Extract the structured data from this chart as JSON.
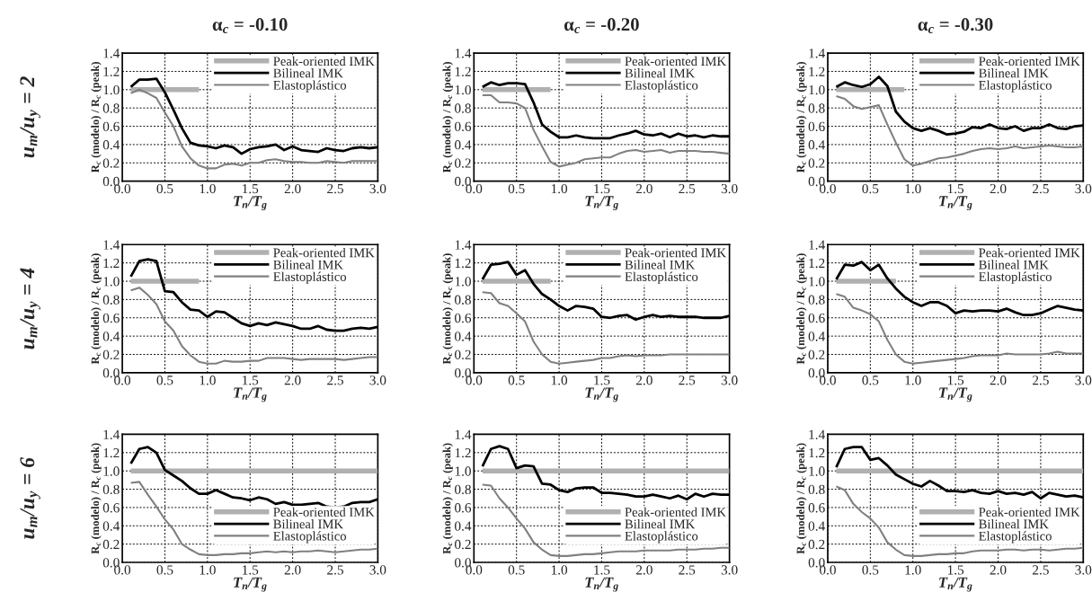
{
  "chart_data": [
    {
      "type": "line",
      "title": "α$_{c}$ = -0.10",
      "annotations": [
        "u$_{m}$/u$_{y}$ = 2"
      ],
      "xlabel": "T$_{n}$/T$_{g}$",
      "ylabel": "R$_{c}$ (modelo) / R$_{c}$ (peak)",
      "x": [
        0.1,
        0.2,
        0.3,
        0.4,
        0.5,
        0.6,
        0.7,
        0.8,
        0.9,
        1.0,
        1.1,
        1.2,
        1.3,
        1.4,
        1.5,
        1.6,
        1.7,
        1.8,
        1.9,
        2.0,
        2.1,
        2.2,
        2.3,
        2.4,
        2.5,
        2.6,
        2.7,
        2.8,
        2.9,
        3.0
      ],
      "series": [
        {
          "name": "Peak-oriented IMK",
          "color": "#b0b0b0",
          "values": [
            1.0,
            1.0,
            1.0,
            1.0,
            1.0,
            1.0,
            1.0,
            1.0,
            1.0,
            null,
            null,
            null,
            null,
            null,
            null,
            null,
            null,
            null,
            null,
            null,
            null,
            null,
            null,
            null,
            null,
            null,
            null,
            null,
            null,
            null
          ]
        },
        {
          "name": "Bilineal IMK",
          "color": "#000000",
          "values": [
            1.03,
            1.11,
            1.11,
            1.12,
            0.97,
            0.78,
            0.58,
            0.42,
            0.39,
            0.38,
            0.36,
            0.39,
            0.37,
            0.3,
            0.35,
            0.37,
            0.38,
            0.4,
            0.34,
            0.38,
            0.34,
            0.33,
            0.32,
            0.36,
            0.34,
            0.33,
            0.36,
            0.37,
            0.36,
            0.37
          ]
        },
        {
          "name": "Elastoplástico",
          "color": "#808080",
          "values": [
            0.96,
            1.0,
            0.96,
            0.91,
            0.75,
            0.6,
            0.38,
            0.25,
            0.17,
            0.14,
            0.14,
            0.18,
            0.19,
            0.17,
            0.2,
            0.2,
            0.23,
            0.24,
            0.22,
            0.21,
            0.21,
            0.2,
            0.2,
            0.22,
            0.21,
            0.2,
            0.22,
            0.22,
            0.22,
            0.22
          ]
        }
      ],
      "xlim": [
        0,
        3
      ],
      "ylim": [
        0,
        1.4
      ],
      "xticks": [
        {
          "value": 0,
          "label": "0.0"
        },
        {
          "value": 0.5,
          "label": "0.5"
        },
        {
          "value": 1,
          "label": "1.0"
        },
        {
          "value": 1.5,
          "label": "1.5"
        },
        {
          "value": 2,
          "label": "2.0"
        },
        {
          "value": 2.5,
          "label": "2.5"
        },
        {
          "value": 3,
          "label": "3.0"
        }
      ],
      "yticks": [
        {
          "value": 0,
          "label": "0.0"
        },
        {
          "value": 0.2,
          "label": "0.2"
        },
        {
          "value": 0.4,
          "label": "0.4"
        },
        {
          "value": 0.6,
          "label": "0.6"
        },
        {
          "value": 0.8,
          "label": "0.8"
        },
        {
          "value": 1,
          "label": "1.0"
        },
        {
          "value": 1.2,
          "label": "1.2"
        },
        {
          "value": 1.4,
          "label": "1.4"
        }
      ],
      "grid": true,
      "legend": "top right",
      "line_style": "solid"
    },
    {
      "type": "line",
      "title": "α$_{c}$ = -0.20",
      "xlabel": "T$_{n}$/T$_{g}$",
      "ylabel": "R$_{c}$ (modelo) / R$_{c}$ (peak)",
      "x": [
        0.1,
        0.2,
        0.3,
        0.4,
        0.5,
        0.6,
        0.7,
        0.8,
        0.9,
        1.0,
        1.1,
        1.2,
        1.3,
        1.4,
        1.5,
        1.6,
        1.7,
        1.8,
        1.9,
        2.0,
        2.1,
        2.2,
        2.3,
        2.4,
        2.5,
        2.6,
        2.7,
        2.8,
        2.9,
        3.0
      ],
      "series": [
        {
          "name": "Peak-oriented IMK",
          "color": "#b0b0b0",
          "values": [
            1.0,
            1.0,
            1.0,
            1.0,
            1.0,
            1.0,
            1.0,
            1.0,
            1.0,
            null,
            null,
            null,
            null,
            null,
            null,
            null,
            null,
            null,
            null,
            null,
            null,
            null,
            null,
            null,
            null,
            null,
            null,
            null,
            null,
            null
          ]
        },
        {
          "name": "Bilineal IMK",
          "color": "#000000",
          "values": [
            1.03,
            1.08,
            1.05,
            1.07,
            1.07,
            1.06,
            0.86,
            0.62,
            0.54,
            0.48,
            0.48,
            0.5,
            0.48,
            0.47,
            0.47,
            0.47,
            0.5,
            0.52,
            0.55,
            0.51,
            0.5,
            0.52,
            0.48,
            0.52,
            0.49,
            0.5,
            0.48,
            0.5,
            0.49,
            0.49
          ]
        },
        {
          "name": "Elastoplástico",
          "color": "#808080",
          "values": [
            0.94,
            0.94,
            0.86,
            0.86,
            0.85,
            0.8,
            0.56,
            0.38,
            0.21,
            0.16,
            0.18,
            0.2,
            0.24,
            0.25,
            0.26,
            0.26,
            0.3,
            0.33,
            0.34,
            0.32,
            0.33,
            0.34,
            0.31,
            0.33,
            0.33,
            0.33,
            0.32,
            0.32,
            0.31,
            0.3
          ]
        }
      ],
      "xlim": [
        0,
        3
      ],
      "ylim": [
        0,
        1.4
      ],
      "xticks": [
        {
          "value": 0,
          "label": "0.0"
        },
        {
          "value": 0.5,
          "label": "0.5"
        },
        {
          "value": 1,
          "label": "1.0"
        },
        {
          "value": 1.5,
          "label": "1.5"
        },
        {
          "value": 2,
          "label": "2.0"
        },
        {
          "value": 2.5,
          "label": "2.5"
        },
        {
          "value": 3,
          "label": "3.0"
        }
      ],
      "yticks": [
        {
          "value": 0,
          "label": "0.0"
        },
        {
          "value": 0.2,
          "label": "0.2"
        },
        {
          "value": 0.4,
          "label": "0.4"
        },
        {
          "value": 0.6,
          "label": "0.6"
        },
        {
          "value": 0.8,
          "label": "0.8"
        },
        {
          "value": 1,
          "label": "1.0"
        },
        {
          "value": 1.2,
          "label": "1.2"
        },
        {
          "value": 1.4,
          "label": "1.4"
        }
      ],
      "grid": true,
      "legend": "top right",
      "line_style": "solid"
    },
    {
      "type": "line",
      "title": "α$_{c}$ = -0.30",
      "xlabel": "T$_{n}$/T$_{g}$",
      "ylabel": "R$_{c}$ (modelo) / R$_{c}$ (peak)",
      "x": [
        0.1,
        0.2,
        0.3,
        0.4,
        0.5,
        0.6,
        0.7,
        0.8,
        0.9,
        1.0,
        1.1,
        1.2,
        1.3,
        1.4,
        1.5,
        1.6,
        1.7,
        1.8,
        1.9,
        2.0,
        2.1,
        2.2,
        2.3,
        2.4,
        2.5,
        2.6,
        2.7,
        2.8,
        2.9,
        3.0
      ],
      "series": [
        {
          "name": "Peak-oriented IMK",
          "color": "#b0b0b0",
          "values": [
            1.0,
            1.0,
            1.0,
            1.0,
            1.0,
            1.0,
            1.0,
            1.0,
            1.0,
            null,
            null,
            null,
            null,
            null,
            null,
            null,
            null,
            null,
            null,
            null,
            null,
            null,
            null,
            null,
            null,
            null,
            null,
            null,
            null,
            null
          ]
        },
        {
          "name": "Bilineal IMK",
          "color": "#000000",
          "values": [
            1.03,
            1.08,
            1.05,
            1.03,
            1.06,
            1.14,
            1.04,
            0.76,
            0.65,
            0.58,
            0.55,
            0.58,
            0.55,
            0.51,
            0.52,
            0.54,
            0.59,
            0.58,
            0.62,
            0.58,
            0.57,
            0.6,
            0.55,
            0.58,
            0.58,
            0.62,
            0.58,
            0.57,
            0.6,
            0.61
          ]
        },
        {
          "name": "Elastoplástico",
          "color": "#808080",
          "values": [
            0.93,
            0.9,
            0.82,
            0.79,
            0.81,
            0.83,
            0.62,
            0.42,
            0.24,
            0.17,
            0.19,
            0.22,
            0.25,
            0.26,
            0.28,
            0.3,
            0.33,
            0.35,
            0.36,
            0.35,
            0.36,
            0.38,
            0.36,
            0.37,
            0.38,
            0.39,
            0.38,
            0.37,
            0.37,
            0.38
          ]
        }
      ],
      "xlim": [
        0,
        3
      ],
      "ylim": [
        0,
        1.4
      ],
      "xticks": [
        {
          "value": 0,
          "label": "0.0"
        },
        {
          "value": 0.5,
          "label": "0.5"
        },
        {
          "value": 1,
          "label": "1.0"
        },
        {
          "value": 1.5,
          "label": "1.5"
        },
        {
          "value": 2,
          "label": "2.0"
        },
        {
          "value": 2.5,
          "label": "2.5"
        },
        {
          "value": 3,
          "label": "3.0"
        }
      ],
      "yticks": [
        {
          "value": 0,
          "label": "0.0"
        },
        {
          "value": 0.2,
          "label": "0.2"
        },
        {
          "value": 0.4,
          "label": "0.4"
        },
        {
          "value": 0.6,
          "label": "0.6"
        },
        {
          "value": 0.8,
          "label": "0.8"
        },
        {
          "value": 1,
          "label": "1.0"
        },
        {
          "value": 1.2,
          "label": "1.2"
        },
        {
          "value": 1.4,
          "label": "1.4"
        }
      ],
      "grid": true,
      "legend": "top right",
      "line_style": "solid"
    },
    {
      "type": "line",
      "annotations": [
        "u$_{m}$/u$_{y}$ = 4"
      ],
      "xlabel": "T$_{n}$/T$_{g}$",
      "ylabel": "R$_{c}$ (modelo) / R$_{c}$ (peak)",
      "x": [
        0.1,
        0.2,
        0.3,
        0.4,
        0.5,
        0.6,
        0.7,
        0.8,
        0.9,
        1.0,
        1.1,
        1.2,
        1.3,
        1.4,
        1.5,
        1.6,
        1.7,
        1.8,
        1.9,
        2.0,
        2.1,
        2.2,
        2.3,
        2.4,
        2.5,
        2.6,
        2.7,
        2.8,
        2.9,
        3.0
      ],
      "series": [
        {
          "name": "Peak-oriented IMK",
          "color": "#b0b0b0",
          "values": [
            1.0,
            1.0,
            1.0,
            1.0,
            1.0,
            1.0,
            1.0,
            1.0,
            1.0,
            null,
            null,
            null,
            null,
            null,
            null,
            null,
            null,
            null,
            null,
            null,
            null,
            null,
            null,
            null,
            null,
            null,
            null,
            null,
            null,
            null
          ]
        },
        {
          "name": "Bilineal IMK",
          "color": "#000000",
          "values": [
            1.05,
            1.22,
            1.24,
            1.22,
            0.89,
            0.88,
            0.77,
            0.69,
            0.68,
            0.61,
            0.67,
            0.66,
            0.6,
            0.54,
            0.51,
            0.54,
            0.52,
            0.55,
            0.53,
            0.51,
            0.48,
            0.48,
            0.51,
            0.47,
            0.46,
            0.46,
            0.48,
            0.49,
            0.48,
            0.5
          ]
        },
        {
          "name": "Elastoplástico",
          "color": "#808080",
          "values": [
            0.9,
            0.93,
            0.85,
            0.75,
            0.56,
            0.46,
            0.29,
            0.19,
            0.12,
            0.1,
            0.1,
            0.13,
            0.12,
            0.12,
            0.13,
            0.13,
            0.16,
            0.16,
            0.16,
            0.15,
            0.14,
            0.15,
            0.15,
            0.15,
            0.15,
            0.14,
            0.15,
            0.16,
            0.17,
            0.17
          ]
        }
      ],
      "xlim": [
        0,
        3
      ],
      "ylim": [
        0,
        1.4
      ],
      "xticks": [
        {
          "value": 0,
          "label": "0.0"
        },
        {
          "value": 0.5,
          "label": "0.5"
        },
        {
          "value": 1,
          "label": "1.0"
        },
        {
          "value": 1.5,
          "label": "1.5"
        },
        {
          "value": 2,
          "label": "2.0"
        },
        {
          "value": 2.5,
          "label": "2.5"
        },
        {
          "value": 3,
          "label": "3.0"
        }
      ],
      "yticks": [
        {
          "value": 0,
          "label": "0.0"
        },
        {
          "value": 0.2,
          "label": "0.2"
        },
        {
          "value": 0.4,
          "label": "0.4"
        },
        {
          "value": 0.6,
          "label": "0.6"
        },
        {
          "value": 0.8,
          "label": "0.8"
        },
        {
          "value": 1,
          "label": "1.0"
        },
        {
          "value": 1.2,
          "label": "1.2"
        },
        {
          "value": 1.4,
          "label": "1.4"
        }
      ],
      "grid": true,
      "legend": "top right",
      "line_style": "solid"
    },
    {
      "type": "line",
      "xlabel": "T$_{n}$/T$_{g}$",
      "ylabel": "R$_{c}$ (modelo) / R$_{c}$ (peak)",
      "x": [
        0.1,
        0.2,
        0.3,
        0.4,
        0.5,
        0.6,
        0.7,
        0.8,
        0.9,
        1.0,
        1.1,
        1.2,
        1.3,
        1.4,
        1.5,
        1.6,
        1.7,
        1.8,
        1.9,
        2.0,
        2.1,
        2.2,
        2.3,
        2.4,
        2.5,
        2.6,
        2.7,
        2.8,
        2.9,
        3.0
      ],
      "series": [
        {
          "name": "Peak-oriented IMK",
          "color": "#b0b0b0",
          "values": [
            1.0,
            1.0,
            1.0,
            1.0,
            1.0,
            1.0,
            1.0,
            1.0,
            1.0,
            null,
            null,
            null,
            null,
            null,
            null,
            null,
            null,
            null,
            null,
            null,
            null,
            null,
            null,
            null,
            null,
            null,
            null,
            null,
            null,
            null
          ]
        },
        {
          "name": "Bilineal IMK",
          "color": "#000000",
          "values": [
            1.02,
            1.18,
            1.19,
            1.21,
            1.07,
            1.12,
            0.97,
            0.86,
            0.8,
            0.73,
            0.68,
            0.73,
            0.72,
            0.7,
            0.61,
            0.6,
            0.62,
            0.63,
            0.58,
            0.61,
            0.63,
            0.61,
            0.62,
            0.61,
            0.61,
            0.61,
            0.6,
            0.6,
            0.6,
            0.62
          ]
        },
        {
          "name": "Elastoplástico",
          "color": "#808080",
          "values": [
            0.88,
            0.87,
            0.76,
            0.73,
            0.65,
            0.56,
            0.34,
            0.2,
            0.12,
            0.1,
            0.11,
            0.12,
            0.13,
            0.14,
            0.16,
            0.16,
            0.18,
            0.19,
            0.18,
            0.19,
            0.19,
            0.19,
            0.2,
            0.2,
            0.2,
            0.2,
            0.2,
            0.2,
            0.2,
            0.2
          ]
        }
      ],
      "xlim": [
        0,
        3
      ],
      "ylim": [
        0,
        1.4
      ],
      "xticks": [
        {
          "value": 0,
          "label": "0.0"
        },
        {
          "value": 0.5,
          "label": "0.5"
        },
        {
          "value": 1,
          "label": "1.0"
        },
        {
          "value": 1.5,
          "label": "1.5"
        },
        {
          "value": 2,
          "label": "2.0"
        },
        {
          "value": 2.5,
          "label": "2.5"
        },
        {
          "value": 3,
          "label": "3.0"
        }
      ],
      "yticks": [
        {
          "value": 0,
          "label": "0.0"
        },
        {
          "value": 0.2,
          "label": "0.2"
        },
        {
          "value": 0.4,
          "label": "0.4"
        },
        {
          "value": 0.6,
          "label": "0.6"
        },
        {
          "value": 0.8,
          "label": "0.8"
        },
        {
          "value": 1,
          "label": "1.0"
        },
        {
          "value": 1.2,
          "label": "1.2"
        },
        {
          "value": 1.4,
          "label": "1.4"
        }
      ],
      "grid": true,
      "legend": "top right",
      "line_style": "solid"
    },
    {
      "type": "line",
      "xlabel": "T$_{n}$/T$_{g}$",
      "ylabel": "R$_{c}$ (modelo) / R$_{c}$ (peak)",
      "x": [
        0.1,
        0.2,
        0.3,
        0.4,
        0.5,
        0.6,
        0.7,
        0.8,
        0.9,
        1.0,
        1.1,
        1.2,
        1.3,
        1.4,
        1.5,
        1.6,
        1.7,
        1.8,
        1.9,
        2.0,
        2.1,
        2.2,
        2.3,
        2.4,
        2.5,
        2.6,
        2.7,
        2.8,
        2.9,
        3.0
      ],
      "series": [
        {
          "name": "Peak-oriented IMK",
          "color": "#b0b0b0",
          "values": [
            1.0,
            1.0,
            1.0,
            1.0,
            1.0,
            1.0,
            1.0,
            1.0,
            null,
            null,
            null,
            null,
            null,
            null,
            null,
            null,
            null,
            null,
            null,
            null,
            null,
            null,
            null,
            null,
            null,
            null,
            null,
            null,
            null,
            null
          ]
        },
        {
          "name": "Bilineal IMK",
          "color": "#000000",
          "values": [
            1.02,
            1.18,
            1.17,
            1.21,
            1.12,
            1.18,
            1.03,
            0.92,
            0.83,
            0.77,
            0.73,
            0.77,
            0.77,
            0.73,
            0.65,
            0.68,
            0.67,
            0.68,
            0.68,
            0.67,
            0.7,
            0.66,
            0.63,
            0.63,
            0.65,
            0.69,
            0.73,
            0.71,
            0.69,
            0.68
          ]
        },
        {
          "name": "Elastoplástico",
          "color": "#808080",
          "values": [
            0.86,
            0.83,
            0.71,
            0.68,
            0.64,
            0.56,
            0.36,
            0.2,
            0.12,
            0.1,
            0.11,
            0.12,
            0.13,
            0.14,
            0.15,
            0.16,
            0.18,
            0.19,
            0.19,
            0.19,
            0.21,
            0.2,
            0.2,
            0.2,
            0.2,
            0.21,
            0.23,
            0.21,
            0.21,
            0.21
          ]
        }
      ],
      "xlim": [
        0,
        3
      ],
      "ylim": [
        0,
        1.4
      ],
      "xticks": [
        {
          "value": 0,
          "label": "0.0"
        },
        {
          "value": 0.5,
          "label": "0.5"
        },
        {
          "value": 1,
          "label": "1.0"
        },
        {
          "value": 1.5,
          "label": "1.5"
        },
        {
          "value": 2,
          "label": "2.0"
        },
        {
          "value": 2.5,
          "label": "2.5"
        },
        {
          "value": 3,
          "label": "3.0"
        }
      ],
      "yticks": [
        {
          "value": 0,
          "label": "0.0"
        },
        {
          "value": 0.2,
          "label": "0.2"
        },
        {
          "value": 0.4,
          "label": "0.4"
        },
        {
          "value": 0.6,
          "label": "0.6"
        },
        {
          "value": 0.8,
          "label": "0.8"
        },
        {
          "value": 1,
          "label": "1.0"
        },
        {
          "value": 1.2,
          "label": "1.2"
        },
        {
          "value": 1.4,
          "label": "1.4"
        }
      ],
      "grid": true,
      "legend": "top right",
      "line_style": "solid"
    },
    {
      "type": "line",
      "annotations": [
        "u$_{m}$/u$_{y}$ = 6"
      ],
      "xlabel": "T$_{n}$/T$_{g}$",
      "ylabel": "R$_{c}$ (modelo) / R$_{c}$ (peak)",
      "x": [
        0.1,
        0.2,
        0.3,
        0.4,
        0.5,
        0.6,
        0.7,
        0.8,
        0.9,
        1.0,
        1.1,
        1.2,
        1.3,
        1.4,
        1.5,
        1.6,
        1.7,
        1.8,
        1.9,
        2.0,
        2.1,
        2.2,
        2.3,
        2.4,
        2.5,
        2.6,
        2.7,
        2.8,
        2.9,
        3.0
      ],
      "series": [
        {
          "name": "Peak-oriented IMK",
          "color": "#b0b0b0",
          "values": [
            1.0,
            1.0,
            1.0,
            1.0,
            1.0,
            1.0,
            1.0,
            1.0,
            1.0,
            1.0,
            1.0,
            1.0,
            1.0,
            1.0,
            1.0,
            1.0,
            1.0,
            1.0,
            1.0,
            1.0,
            1.0,
            1.0,
            1.0,
            1.0,
            1.0,
            1.0,
            1.0,
            1.0,
            1.0,
            1.0
          ]
        },
        {
          "name": "Bilineal IMK",
          "color": "#000000",
          "values": [
            1.08,
            1.24,
            1.26,
            1.2,
            1.01,
            0.95,
            0.89,
            0.81,
            0.75,
            0.75,
            0.79,
            0.75,
            0.71,
            0.7,
            0.68,
            0.71,
            0.69,
            0.64,
            0.66,
            0.63,
            0.63,
            0.64,
            0.65,
            0.61,
            0.6,
            0.61,
            0.65,
            0.66,
            0.66,
            0.69
          ]
        },
        {
          "name": "Elastoplástico",
          "color": "#808080",
          "values": [
            0.87,
            0.88,
            0.74,
            0.61,
            0.47,
            0.36,
            0.2,
            0.14,
            0.09,
            0.08,
            0.08,
            0.09,
            0.09,
            0.1,
            0.1,
            0.11,
            0.12,
            0.11,
            0.12,
            0.11,
            0.12,
            0.12,
            0.13,
            0.12,
            0.11,
            0.12,
            0.13,
            0.14,
            0.14,
            0.15
          ]
        }
      ],
      "xlim": [
        0,
        3
      ],
      "ylim": [
        0,
        1.4
      ],
      "xticks": [
        {
          "value": 0,
          "label": "0.0"
        },
        {
          "value": 0.5,
          "label": "0.5"
        },
        {
          "value": 1,
          "label": "1.0"
        },
        {
          "value": 1.5,
          "label": "1.5"
        },
        {
          "value": 2,
          "label": "2.0"
        },
        {
          "value": 2.5,
          "label": "2.5"
        },
        {
          "value": 3,
          "label": "3.0"
        }
      ],
      "yticks": [
        {
          "value": 0,
          "label": "0.0"
        },
        {
          "value": 0.2,
          "label": "0.2"
        },
        {
          "value": 0.4,
          "label": "0.4"
        },
        {
          "value": 0.6,
          "label": "0.6"
        },
        {
          "value": 0.8,
          "label": "0.8"
        },
        {
          "value": 1,
          "label": "1.0"
        },
        {
          "value": 1.2,
          "label": "1.2"
        },
        {
          "value": 1.4,
          "label": "1.4"
        }
      ],
      "grid": true,
      "legend": "bottom right",
      "line_style": "solid"
    },
    {
      "type": "line",
      "xlabel": "T$_{n}$/T$_{g}$",
      "ylabel": "R$_{c}$ (modelo) / R$_{c}$ (peak)",
      "x": [
        0.1,
        0.2,
        0.3,
        0.4,
        0.5,
        0.6,
        0.7,
        0.8,
        0.9,
        1.0,
        1.1,
        1.2,
        1.3,
        1.4,
        1.5,
        1.6,
        1.7,
        1.8,
        1.9,
        2.0,
        2.1,
        2.2,
        2.3,
        2.4,
        2.5,
        2.6,
        2.7,
        2.8,
        2.9,
        3.0
      ],
      "series": [
        {
          "name": "Peak-oriented IMK",
          "color": "#b0b0b0",
          "values": [
            1.0,
            1.0,
            1.0,
            1.0,
            1.0,
            1.0,
            1.0,
            1.0,
            1.0,
            1.0,
            1.0,
            1.0,
            1.0,
            1.0,
            1.0,
            1.0,
            1.0,
            1.0,
            1.0,
            1.0,
            1.0,
            1.0,
            1.0,
            1.0,
            1.0,
            1.0,
            1.0,
            1.0,
            1.0,
            1.0
          ]
        },
        {
          "name": "Bilineal IMK",
          "color": "#000000",
          "values": [
            1.05,
            1.24,
            1.27,
            1.24,
            1.03,
            1.06,
            1.05,
            0.86,
            0.85,
            0.79,
            0.77,
            0.81,
            0.82,
            0.82,
            0.76,
            0.76,
            0.75,
            0.74,
            0.72,
            0.72,
            0.74,
            0.72,
            0.7,
            0.73,
            0.69,
            0.75,
            0.72,
            0.75,
            0.74,
            0.74
          ]
        },
        {
          "name": "Elastoplástico",
          "color": "#808080",
          "values": [
            0.85,
            0.84,
            0.7,
            0.6,
            0.48,
            0.37,
            0.22,
            0.14,
            0.08,
            0.07,
            0.07,
            0.08,
            0.09,
            0.09,
            0.1,
            0.11,
            0.12,
            0.12,
            0.12,
            0.13,
            0.13,
            0.13,
            0.13,
            0.14,
            0.14,
            0.14,
            0.15,
            0.15,
            0.16,
            0.16
          ]
        }
      ],
      "xlim": [
        0,
        3
      ],
      "ylim": [
        0,
        1.4
      ],
      "xticks": [
        {
          "value": 0,
          "label": "0.0"
        },
        {
          "value": 0.5,
          "label": "0.5"
        },
        {
          "value": 1,
          "label": "1.0"
        },
        {
          "value": 1.5,
          "label": "1.5"
        },
        {
          "value": 2,
          "label": "2.0"
        },
        {
          "value": 2.5,
          "label": "2.5"
        },
        {
          "value": 3,
          "label": "3.0"
        }
      ],
      "yticks": [
        {
          "value": 0,
          "label": "0.0"
        },
        {
          "value": 0.2,
          "label": "0.2"
        },
        {
          "value": 0.4,
          "label": "0.4"
        },
        {
          "value": 0.6,
          "label": "0.6"
        },
        {
          "value": 0.8,
          "label": "0.8"
        },
        {
          "value": 1,
          "label": "1.0"
        },
        {
          "value": 1.2,
          "label": "1.2"
        },
        {
          "value": 1.4,
          "label": "1.4"
        }
      ],
      "grid": true,
      "legend": "bottom right",
      "line_style": "solid"
    },
    {
      "type": "line",
      "xlabel": "T$_{n}$/T$_{g}$",
      "ylabel": "R$_{c}$ (modelo) / R$_{c}$ (peak)",
      "x": [
        0.1,
        0.2,
        0.3,
        0.4,
        0.5,
        0.6,
        0.7,
        0.8,
        0.9,
        1.0,
        1.1,
        1.2,
        1.3,
        1.4,
        1.5,
        1.6,
        1.7,
        1.8,
        1.9,
        2.0,
        2.1,
        2.2,
        2.3,
        2.4,
        2.5,
        2.6,
        2.7,
        2.8,
        2.9,
        3.0
      ],
      "series": [
        {
          "name": "Peak-oriented IMK",
          "color": "#b0b0b0",
          "values": [
            1.0,
            1.0,
            1.0,
            1.0,
            1.0,
            1.0,
            1.0,
            1.0,
            1.0,
            1.0,
            1.0,
            1.0,
            1.0,
            1.0,
            1.0,
            1.0,
            1.0,
            1.0,
            1.0,
            1.0,
            1.0,
            1.0,
            1.0,
            1.0,
            1.0,
            1.0,
            1.0,
            1.0,
            1.0,
            1.0
          ]
        },
        {
          "name": "Bilineal IMK",
          "color": "#000000",
          "values": [
            1.04,
            1.24,
            1.26,
            1.26,
            1.12,
            1.14,
            1.06,
            0.96,
            0.91,
            0.86,
            0.83,
            0.89,
            0.84,
            0.78,
            0.78,
            0.77,
            0.79,
            0.76,
            0.75,
            0.78,
            0.75,
            0.76,
            0.74,
            0.77,
            0.7,
            0.76,
            0.74,
            0.72,
            0.73,
            0.71
          ]
        },
        {
          "name": "Elastoplástico",
          "color": "#808080",
          "values": [
            0.83,
            0.79,
            0.64,
            0.55,
            0.48,
            0.38,
            0.22,
            0.14,
            0.08,
            0.07,
            0.07,
            0.08,
            0.09,
            0.09,
            0.1,
            0.1,
            0.12,
            0.13,
            0.13,
            0.13,
            0.14,
            0.14,
            0.13,
            0.14,
            0.14,
            0.13,
            0.14,
            0.15,
            0.15,
            0.16
          ]
        }
      ],
      "xlim": [
        0,
        3
      ],
      "ylim": [
        0,
        1.4
      ],
      "xticks": [
        {
          "value": 0,
          "label": "0.0"
        },
        {
          "value": 0.5,
          "label": "0.5"
        },
        {
          "value": 1,
          "label": "1.0"
        },
        {
          "value": 1.5,
          "label": "1.5"
        },
        {
          "value": 2,
          "label": "2.0"
        },
        {
          "value": 2.5,
          "label": "2.5"
        },
        {
          "value": 3,
          "label": "3.0"
        }
      ],
      "yticks": [
        {
          "value": 0,
          "label": "0.0"
        },
        {
          "value": 0.2,
          "label": "0.2"
        },
        {
          "value": 0.4,
          "label": "0.4"
        },
        {
          "value": 0.6,
          "label": "0.6"
        },
        {
          "value": 0.8,
          "label": "0.8"
        },
        {
          "value": 1,
          "label": "1.0"
        },
        {
          "value": 1.2,
          "label": "1.2"
        },
        {
          "value": 1.4,
          "label": "1.4"
        }
      ],
      "grid": true,
      "legend": "bottom right",
      "line_style": "solid"
    }
  ]
}
